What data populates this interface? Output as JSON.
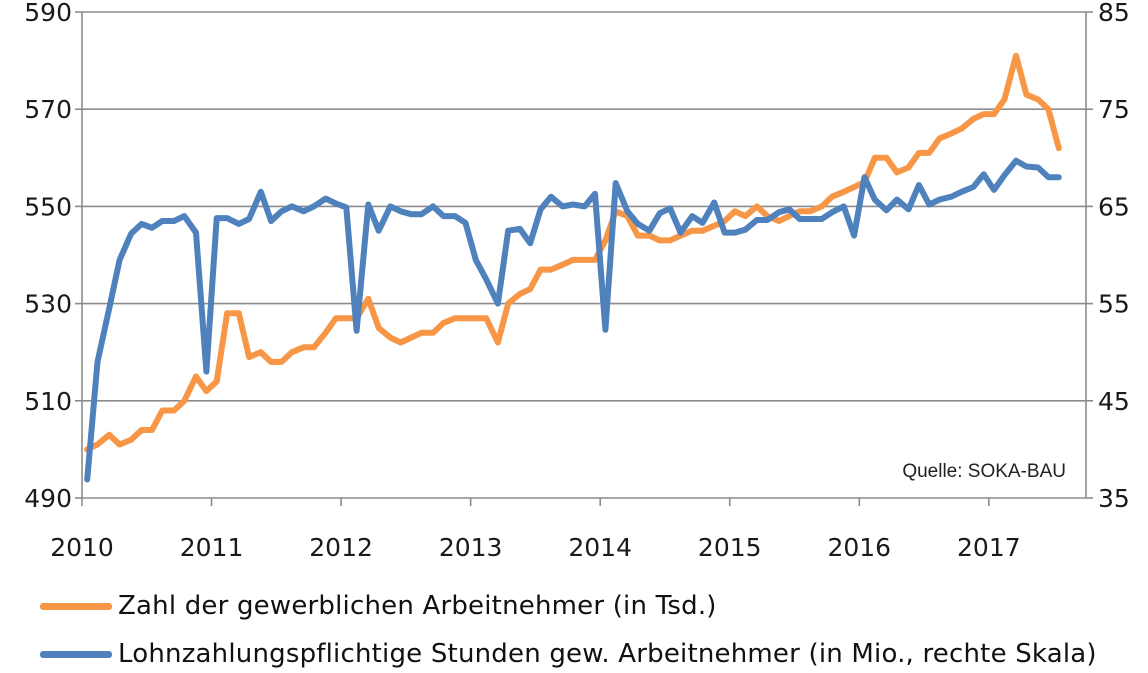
{
  "chart_data": {
    "type": "line",
    "source": "Quelle: SOKA-BAU",
    "x_ticks": [
      "2010",
      "2011",
      "2012",
      "2013",
      "2014",
      "2015",
      "2016",
      "2017"
    ],
    "xlim": [
      2010,
      2017.75
    ],
    "y_left": {
      "ticks": [
        "490",
        "510",
        "530",
        "550",
        "570",
        "590"
      ],
      "lim": [
        490,
        590
      ]
    },
    "y_right": {
      "ticks": [
        "35",
        "45",
        "55",
        "65",
        "75",
        "85"
      ],
      "lim": [
        35,
        85
      ]
    },
    "grid": true,
    "legend_position": "bottom",
    "series": [
      {
        "name": "Zahl der gewerblichen Arbeitnehmer (in Tsd.)",
        "axis": "left",
        "color": "#f79646",
        "points": [
          [
            2010.04,
            500
          ],
          [
            2010.12,
            501
          ],
          [
            2010.21,
            503
          ],
          [
            2010.29,
            501
          ],
          [
            2010.38,
            502
          ],
          [
            2010.46,
            504
          ],
          [
            2010.54,
            504
          ],
          [
            2010.62,
            508
          ],
          [
            2010.71,
            508
          ],
          [
            2010.79,
            510
          ],
          [
            2010.88,
            515
          ],
          [
            2010.96,
            512
          ],
          [
            2011.04,
            514
          ],
          [
            2011.12,
            528
          ],
          [
            2011.21,
            528
          ],
          [
            2011.29,
            519
          ],
          [
            2011.38,
            520
          ],
          [
            2011.46,
            518
          ],
          [
            2011.54,
            518
          ],
          [
            2011.62,
            520
          ],
          [
            2011.71,
            521
          ],
          [
            2011.79,
            521
          ],
          [
            2011.88,
            524
          ],
          [
            2011.96,
            527
          ],
          [
            2012.04,
            527
          ],
          [
            2012.12,
            527
          ],
          [
            2012.21,
            531
          ],
          [
            2012.29,
            525
          ],
          [
            2012.38,
            523
          ],
          [
            2012.46,
            522
          ],
          [
            2012.54,
            523
          ],
          [
            2012.62,
            524
          ],
          [
            2012.71,
            524
          ],
          [
            2012.79,
            526
          ],
          [
            2012.88,
            527
          ],
          [
            2012.96,
            527
          ],
          [
            2013.04,
            527
          ],
          [
            2013.12,
            527
          ],
          [
            2013.21,
            522
          ],
          [
            2013.29,
            530
          ],
          [
            2013.38,
            532
          ],
          [
            2013.46,
            533
          ],
          [
            2013.54,
            537
          ],
          [
            2013.62,
            537
          ],
          [
            2013.71,
            538
          ],
          [
            2013.79,
            539
          ],
          [
            2013.88,
            539
          ],
          [
            2013.96,
            539
          ],
          [
            2014.04,
            543
          ],
          [
            2014.12,
            549
          ],
          [
            2014.21,
            548
          ],
          [
            2014.29,
            544
          ],
          [
            2014.38,
            544
          ],
          [
            2014.46,
            543
          ],
          [
            2014.54,
            543
          ],
          [
            2014.62,
            544
          ],
          [
            2014.71,
            545
          ],
          [
            2014.79,
            545
          ],
          [
            2014.88,
            546
          ],
          [
            2014.96,
            547
          ],
          [
            2015.04,
            549
          ],
          [
            2015.12,
            548
          ],
          [
            2015.21,
            550
          ],
          [
            2015.29,
            548
          ],
          [
            2015.38,
            547
          ],
          [
            2015.46,
            548
          ],
          [
            2015.54,
            549
          ],
          [
            2015.62,
            549
          ],
          [
            2015.71,
            550
          ],
          [
            2015.79,
            552
          ],
          [
            2015.88,
            553
          ],
          [
            2015.96,
            554
          ],
          [
            2016.04,
            555
          ],
          [
            2016.12,
            560
          ],
          [
            2016.21,
            560
          ],
          [
            2016.29,
            557
          ],
          [
            2016.38,
            558
          ],
          [
            2016.46,
            561
          ],
          [
            2016.54,
            561
          ],
          [
            2016.62,
            564
          ],
          [
            2016.71,
            565
          ],
          [
            2016.79,
            566
          ],
          [
            2016.88,
            568
          ],
          [
            2016.96,
            569
          ],
          [
            2017.04,
            569
          ],
          [
            2017.12,
            572
          ],
          [
            2017.21,
            581
          ],
          [
            2017.29,
            573
          ],
          [
            2017.38,
            572
          ],
          [
            2017.46,
            570
          ],
          [
            2017.54,
            562
          ]
        ]
      },
      {
        "name": "Lohnzahlungspflichtige Stunden gew. Arbeitnehmer (in Mio.,  rechte Skala)",
        "axis": "right",
        "color": "#4f81bd",
        "points": [
          [
            2010.04,
            36.9
          ],
          [
            2010.12,
            49
          ],
          [
            2010.21,
            54.5
          ],
          [
            2010.29,
            59.5
          ],
          [
            2010.38,
            62.2
          ],
          [
            2010.46,
            63.2
          ],
          [
            2010.54,
            62.8
          ],
          [
            2010.62,
            63.5
          ],
          [
            2010.71,
            63.5
          ],
          [
            2010.79,
            64
          ],
          [
            2010.88,
            62.3
          ],
          [
            2010.96,
            48
          ],
          [
            2011.04,
            63.8
          ],
          [
            2011.12,
            63.8
          ],
          [
            2011.21,
            63.2
          ],
          [
            2011.29,
            63.7
          ],
          [
            2011.38,
            66.5
          ],
          [
            2011.46,
            63.5
          ],
          [
            2011.54,
            64.5
          ],
          [
            2011.62,
            65
          ],
          [
            2011.71,
            64.5
          ],
          [
            2011.79,
            65
          ],
          [
            2011.88,
            65.8
          ],
          [
            2011.96,
            65.3
          ],
          [
            2012.04,
            64.9
          ],
          [
            2012.12,
            52.2
          ],
          [
            2012.21,
            65.2
          ],
          [
            2012.29,
            62.5
          ],
          [
            2012.38,
            65
          ],
          [
            2012.46,
            64.5
          ],
          [
            2012.54,
            64.2
          ],
          [
            2012.62,
            64.2
          ],
          [
            2012.71,
            65
          ],
          [
            2012.79,
            64
          ],
          [
            2012.88,
            64
          ],
          [
            2012.96,
            63.3
          ],
          [
            2013.04,
            59.5
          ],
          [
            2013.12,
            57.5
          ],
          [
            2013.21,
            55
          ],
          [
            2013.29,
            62.5
          ],
          [
            2013.38,
            62.7
          ],
          [
            2013.46,
            61.2
          ],
          [
            2013.54,
            64.7
          ],
          [
            2013.62,
            66
          ],
          [
            2013.71,
            65
          ],
          [
            2013.79,
            65.2
          ],
          [
            2013.88,
            65
          ],
          [
            2013.96,
            66.3
          ],
          [
            2014.04,
            52.3
          ],
          [
            2014.12,
            67.4
          ],
          [
            2014.21,
            64.5
          ],
          [
            2014.29,
            63.2
          ],
          [
            2014.38,
            62.5
          ],
          [
            2014.46,
            64.3
          ],
          [
            2014.54,
            64.8
          ],
          [
            2014.62,
            62.3
          ],
          [
            2014.71,
            64
          ],
          [
            2014.79,
            63.3
          ],
          [
            2014.88,
            65.4
          ],
          [
            2014.96,
            62.3
          ],
          [
            2015.04,
            62.3
          ],
          [
            2015.12,
            62.6
          ],
          [
            2015.21,
            63.6
          ],
          [
            2015.29,
            63.6
          ],
          [
            2015.38,
            64.4
          ],
          [
            2015.46,
            64.7
          ],
          [
            2015.54,
            63.7
          ],
          [
            2015.62,
            63.7
          ],
          [
            2015.71,
            63.7
          ],
          [
            2015.79,
            64.4
          ],
          [
            2015.88,
            65
          ],
          [
            2015.96,
            62
          ],
          [
            2016.04,
            68
          ],
          [
            2016.12,
            65.7
          ],
          [
            2016.21,
            64.6
          ],
          [
            2016.29,
            65.7
          ],
          [
            2016.38,
            64.7
          ],
          [
            2016.46,
            67.2
          ],
          [
            2016.54,
            65.2
          ],
          [
            2016.62,
            65.7
          ],
          [
            2016.71,
            66
          ],
          [
            2016.79,
            66.5
          ],
          [
            2016.88,
            67
          ],
          [
            2016.96,
            68.3
          ],
          [
            2017.04,
            66.7
          ],
          [
            2017.12,
            68.2
          ],
          [
            2017.21,
            69.7
          ],
          [
            2017.29,
            69.1
          ],
          [
            2017.38,
            69
          ],
          [
            2017.46,
            68
          ],
          [
            2017.54,
            68
          ]
        ]
      }
    ]
  }
}
